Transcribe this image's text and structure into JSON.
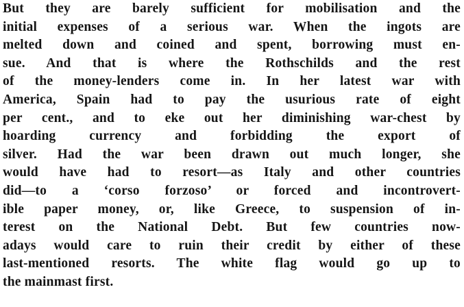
{
  "article": {
    "lines": [
      "But they are barely sufficient for mobilisation and the",
      "initial expenses of a serious war. When the ingots are",
      "melted down and coined and spent, borrowing must en-",
      "sue. And that is where the Rothschilds and the rest",
      "of the money-lenders come in. In her latest war with",
      "America, Spain had to pay the usurious rate of eight",
      "per cent., and to eke out her diminishing war-chest by",
      "hoarding currency and forbidding the export of",
      "silver. Had the war been drawn out much longer, she",
      "would have had to resort—as Italy and other countries",
      "did—to a ‘corso forzoso’ or forced and incontrovert-",
      "ible paper money, or, like Greece, to suspension of in-",
      "terest on the National Debt. But few countries now-",
      "adays would care to ruin their credit by either of these",
      "last-mentioned resorts. The white flag would go up to",
      "the mainmast first."
    ]
  }
}
